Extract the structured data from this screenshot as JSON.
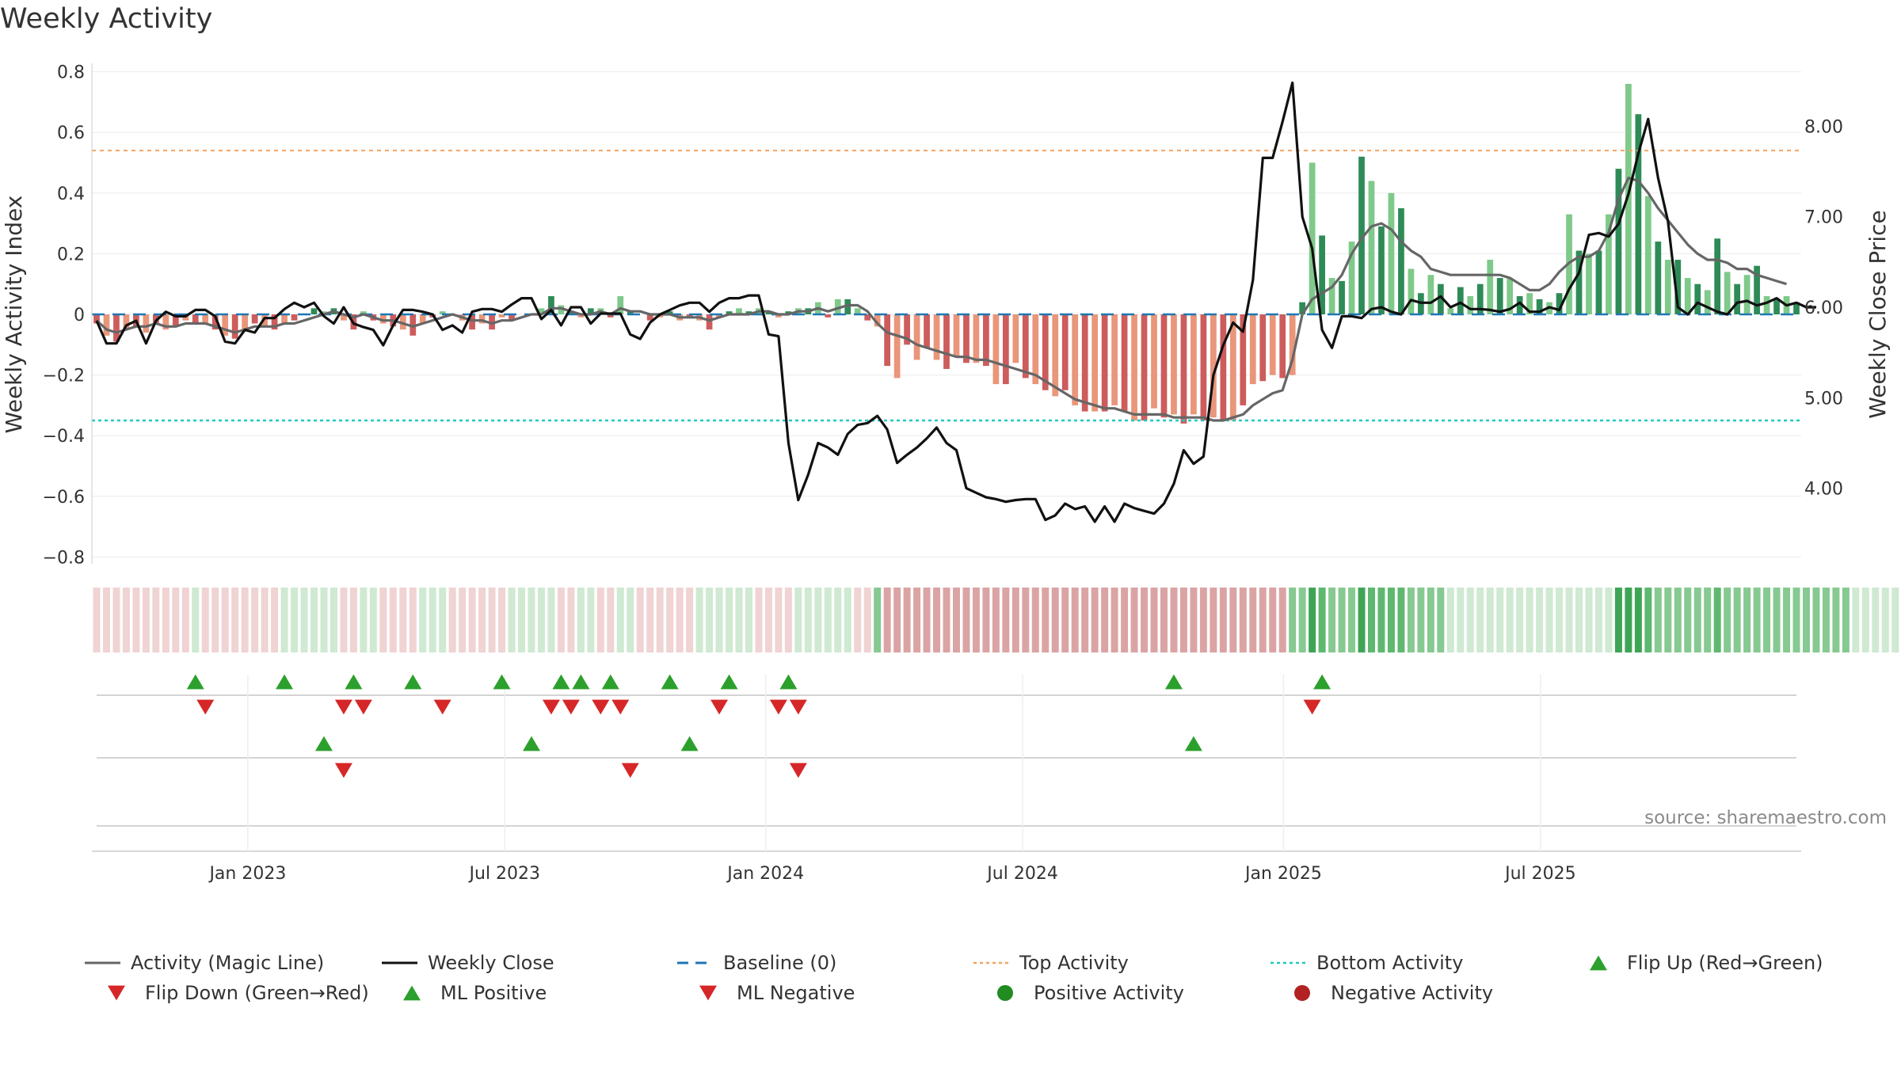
{
  "title": "Weekly Activity",
  "source": "source: sharemaestro.com",
  "colors": {
    "pos_dark": "#2e8b57",
    "pos_light": "#7fc98a",
    "neg_dark": "#cd5c5c",
    "neg_light": "#e9967a",
    "magic": "#666666",
    "close": "#111111",
    "baseline": "#1f77b4",
    "top": "#f4a460",
    "bottom": "#20c9c0",
    "flip_up": "#2ca02c",
    "flip_down": "#d62728",
    "pos_activity": "#228b22",
    "neg_activity": "#b22222"
  },
  "chart_data": {
    "type": "bar+line",
    "ylabel_left": "Weekly Activity Index",
    "ylabel_right": "Weekly Close Price",
    "ylim_left": [
      -0.8,
      0.8
    ],
    "ylim_right": [
      3.25,
      8.65
    ],
    "yticks_left": [
      "0.8",
      "0.6",
      "0.4",
      "0.2",
      "0",
      "−0.2",
      "−0.4",
      "−0.6",
      "−0.8"
    ],
    "yticks_left_values": [
      0.8,
      0.6,
      0.4,
      0.2,
      0,
      -0.2,
      -0.4,
      -0.6,
      -0.8
    ],
    "yticks_right": [
      "8.00",
      "7.00",
      "6.00",
      "5.00",
      "4.00"
    ],
    "yticks_right_values": [
      8,
      7,
      6,
      5,
      4
    ],
    "x_ticks": [
      "Jan 2023",
      "Jul 2023",
      "Jan 2024",
      "Jul 2024",
      "Jan 2025",
      "Jul 2025"
    ],
    "x_tick_weeks": [
      15.3,
      41.3,
      67.7,
      93.7,
      120.1,
      146.1
    ],
    "top_activity": 0.54,
    "bottom_activity": -0.35,
    "baseline": 0,
    "activity": [
      -0.03,
      -0.07,
      -0.09,
      -0.05,
      -0.04,
      -0.06,
      -0.03,
      -0.05,
      -0.04,
      -0.02,
      -0.03,
      -0.03,
      -0.05,
      -0.07,
      -0.08,
      -0.05,
      -0.03,
      -0.04,
      -0.05,
      -0.03,
      -0.02,
      0.0,
      0.02,
      0.01,
      0.02,
      -0.02,
      -0.05,
      0.01,
      -0.02,
      -0.03,
      -0.04,
      -0.05,
      -0.07,
      -0.03,
      -0.01,
      0.01,
      0.0,
      -0.02,
      -0.05,
      -0.03,
      -0.05,
      -0.01,
      -0.02,
      0.0,
      0.0,
      0.02,
      0.06,
      0.03,
      0.01,
      -0.01,
      0.02,
      0.02,
      -0.01,
      0.06,
      0.01,
      0.0,
      -0.02,
      -0.01,
      0.01,
      -0.02,
      -0.01,
      -0.02,
      -0.05,
      -0.01,
      0.01,
      0.02,
      0.01,
      0.02,
      0.01,
      -0.01,
      0.01,
      0.02,
      0.02,
      0.04,
      -0.01,
      0.05,
      0.05,
      0.02,
      -0.02,
      -0.04,
      -0.17,
      -0.21,
      -0.1,
      -0.15,
      -0.11,
      -0.15,
      -0.18,
      -0.14,
      -0.16,
      -0.16,
      -0.17,
      -0.23,
      -0.23,
      -0.16,
      -0.21,
      -0.23,
      -0.25,
      -0.27,
      -0.25,
      -0.3,
      -0.32,
      -0.32,
      -0.32,
      -0.3,
      -0.32,
      -0.35,
      -0.35,
      -0.31,
      -0.34,
      -0.33,
      -0.36,
      -0.33,
      -0.35,
      -0.34,
      -0.35,
      -0.35,
      -0.3,
      -0.23,
      -0.22,
      -0.2,
      -0.21,
      -0.2,
      0.04,
      0.5,
      0.26,
      0.12,
      0.11,
      0.24,
      0.52,
      0.44,
      0.29,
      0.4,
      0.35,
      0.15,
      0.07,
      0.13,
      0.1,
      0.02,
      0.09,
      0.06,
      0.1,
      0.18,
      0.12,
      0.12,
      0.06,
      0.07,
      0.05,
      0.04,
      0.07,
      0.33,
      0.21,
      0.2,
      0.21,
      0.33,
      0.48,
      0.76,
      0.66,
      0.39,
      0.24,
      0.18,
      0.18,
      0.12,
      0.1,
      0.08,
      0.25,
      0.14,
      0.1,
      0.13,
      0.16,
      0.06,
      0.05,
      0.06,
      0.04
    ],
    "magic_line": [
      -0.02,
      -0.05,
      -0.06,
      -0.05,
      -0.04,
      -0.04,
      -0.03,
      -0.04,
      -0.04,
      -0.03,
      -0.03,
      -0.03,
      -0.04,
      -0.05,
      -0.06,
      -0.05,
      -0.04,
      -0.04,
      -0.04,
      -0.03,
      -0.03,
      -0.02,
      -0.01,
      0.0,
      0.01,
      0.0,
      -0.01,
      0.0,
      -0.01,
      -0.02,
      -0.02,
      -0.03,
      -0.04,
      -0.03,
      -0.02,
      -0.01,
      0.0,
      -0.01,
      -0.02,
      -0.02,
      -0.03,
      -0.02,
      -0.02,
      -0.01,
      0.0,
      0.0,
      0.02,
      0.02,
      0.01,
      0.0,
      0.0,
      0.01,
      0.0,
      0.02,
      0.01,
      0.01,
      0.0,
      0.0,
      0.0,
      -0.01,
      -0.01,
      -0.01,
      -0.02,
      -0.01,
      0.0,
      0.0,
      0.0,
      0.01,
      0.01,
      0.0,
      0.0,
      0.01,
      0.01,
      0.02,
      0.01,
      0.02,
      0.03,
      0.03,
      0.01,
      -0.03,
      -0.06,
      -0.07,
      -0.08,
      -0.1,
      -0.11,
      -0.12,
      -0.13,
      -0.14,
      -0.14,
      -0.15,
      -0.15,
      -0.16,
      -0.17,
      -0.18,
      -0.19,
      -0.2,
      -0.22,
      -0.24,
      -0.26,
      -0.28,
      -0.29,
      -0.3,
      -0.31,
      -0.31,
      -0.32,
      -0.33,
      -0.33,
      -0.33,
      -0.33,
      -0.34,
      -0.34,
      -0.34,
      -0.34,
      -0.35,
      -0.35,
      -0.34,
      -0.33,
      -0.3,
      -0.28,
      -0.26,
      -0.25,
      -0.15,
      0.0,
      0.05,
      0.07,
      0.09,
      0.13,
      0.2,
      0.25,
      0.29,
      0.3,
      0.28,
      0.24,
      0.21,
      0.19,
      0.15,
      0.14,
      0.13,
      0.13,
      0.13,
      0.13,
      0.13,
      0.13,
      0.12,
      0.1,
      0.08,
      0.08,
      0.1,
      0.14,
      0.17,
      0.19,
      0.19,
      0.21,
      0.27,
      0.38,
      0.45,
      0.44,
      0.4,
      0.35,
      0.31,
      0.27,
      0.23,
      0.2,
      0.18,
      0.18,
      0.17,
      0.15,
      0.15,
      0.13,
      0.12,
      0.11,
      0.1
    ],
    "weekly_close": [
      5.85,
      5.6,
      5.6,
      5.8,
      5.85,
      5.6,
      5.85,
      5.95,
      5.9,
      5.9,
      5.97,
      5.97,
      5.9,
      5.62,
      5.6,
      5.75,
      5.72,
      5.88,
      5.88,
      5.98,
      6.05,
      6.0,
      6.05,
      5.9,
      5.82,
      6.0,
      5.82,
      5.78,
      5.75,
      5.58,
      5.8,
      5.97,
      5.97,
      5.95,
      5.92,
      5.75,
      5.8,
      5.72,
      5.95,
      5.98,
      5.98,
      5.95,
      6.03,
      6.1,
      6.1,
      5.87,
      5.97,
      5.8,
      6.0,
      6.0,
      5.82,
      5.93,
      5.93,
      5.93,
      5.7,
      5.65,
      5.83,
      5.92,
      5.97,
      6.02,
      6.05,
      6.05,
      5.95,
      6.05,
      6.1,
      6.1,
      6.13,
      6.13,
      5.7,
      5.68,
      4.5,
      3.87,
      4.15,
      4.5,
      4.45,
      4.37,
      4.6,
      4.7,
      4.72,
      4.8,
      4.65,
      4.28,
      4.37,
      4.45,
      4.55,
      4.67,
      4.5,
      4.42,
      4.0,
      3.95,
      3.9,
      3.88,
      3.85,
      3.87,
      3.88,
      3.88,
      3.65,
      3.7,
      3.83,
      3.77,
      3.8,
      3.63,
      3.8,
      3.63,
      3.83,
      3.78,
      3.75,
      3.72,
      3.83,
      4.05,
      4.42,
      4.27,
      4.35,
      5.25,
      5.58,
      5.83,
      5.73,
      6.3,
      7.65,
      7.65,
      8.05,
      8.48,
      7.0,
      6.65,
      5.75,
      5.55,
      5.9,
      5.9,
      5.88,
      5.98,
      6.0,
      5.95,
      5.92,
      6.08,
      6.05,
      6.05,
      6.12,
      6.0,
      6.05,
      5.98,
      5.98,
      5.97,
      5.95,
      5.98,
      6.05,
      5.95,
      5.95,
      6.0,
      5.97,
      6.2,
      6.38,
      6.8,
      6.82,
      6.78,
      6.92,
      7.25,
      7.7,
      8.08,
      7.43,
      6.95,
      6.0,
      5.92,
      6.05,
      6.0,
      5.95,
      5.92,
      6.05,
      6.07,
      6.02,
      6.05,
      6.1,
      6.02,
      6.05,
      6.0,
      6.0
    ],
    "regime_strip": [
      -1,
      -1,
      -1,
      -1,
      -1,
      -1,
      -1,
      -1,
      -1,
      -1,
      1,
      -1,
      -1,
      -1,
      -1,
      -1,
      -1,
      -1,
      -1,
      1,
      1,
      1,
      1,
      1,
      1,
      -1,
      -1,
      1,
      1,
      -1,
      -1,
      -1,
      -1,
      1,
      1,
      1,
      -1,
      -1,
      -1,
      -1,
      -1,
      -1,
      1,
      1,
      1,
      1,
      1,
      -1,
      -1,
      1,
      1,
      -1,
      -1,
      1,
      1,
      -1,
      -1,
      -1,
      -1,
      -1,
      -1,
      1,
      1,
      1,
      1,
      1,
      1,
      -1,
      -1,
      -1,
      -1,
      1,
      1,
      1,
      1,
      1,
      1,
      -1,
      -1,
      2,
      -2,
      -2,
      -2,
      -2,
      -2,
      -2,
      -2,
      -2,
      -2,
      -2,
      -2,
      -2,
      -2,
      -2,
      -2,
      -2,
      -2,
      -2,
      -2,
      -2,
      -2,
      -2,
      -2,
      -2,
      -2,
      -2,
      -2,
      -2,
      -2,
      -2,
      -2,
      -2,
      -2,
      -2,
      -2,
      -2,
      -2,
      -2,
      -2,
      -2,
      -2,
      2,
      2,
      2,
      2,
      2,
      2,
      2,
      2,
      2,
      2,
      2,
      2,
      2,
      2,
      2,
      2,
      1,
      1,
      1,
      1,
      1,
      1,
      1,
      1,
      1,
      1,
      1,
      1,
      1,
      1,
      1,
      1,
      1,
      2,
      2,
      2,
      2,
      2,
      2,
      2,
      2,
      2,
      2,
      2,
      2,
      2,
      2,
      2,
      2,
      2,
      2,
      2,
      2,
      2,
      2,
      2,
      2,
      1,
      1,
      1,
      1,
      1,
      1,
      1,
      1
    ],
    "flip_up_weeks": [
      10,
      19,
      26,
      32,
      41,
      47,
      49,
      52,
      58,
      64,
      70,
      109,
      124
    ],
    "flip_down_weeks": [
      11,
      25,
      27,
      35,
      46,
      48,
      51,
      53,
      63,
      69,
      71,
      123
    ],
    "ml_positive_weeks": [
      23,
      44,
      60,
      111
    ],
    "ml_negative_weeks": [
      25,
      54,
      71
    ]
  },
  "legend": [
    {
      "label": "Activity (Magic Line)",
      "icon": "line-gray"
    },
    {
      "label": "Weekly Close",
      "icon": "line-black"
    },
    {
      "label": "Baseline (0)",
      "icon": "dash-blue"
    },
    {
      "label": "Top Activity",
      "icon": "dot-orange"
    },
    {
      "label": "Bottom Activity",
      "icon": "dot-teal"
    },
    {
      "label": "Flip Up (Red→Green)",
      "icon": "triangle-up-green"
    },
    {
      "label": "Flip Down (Green→Red)",
      "icon": "triangle-down-red"
    },
    {
      "label": "ML Positive",
      "icon": "triangle-up-green"
    },
    {
      "label": "ML Negative",
      "icon": "triangle-down-red"
    },
    {
      "label": "Positive Activity",
      "icon": "circle-green"
    },
    {
      "label": "Negative Activity",
      "icon": "circle-red"
    }
  ]
}
